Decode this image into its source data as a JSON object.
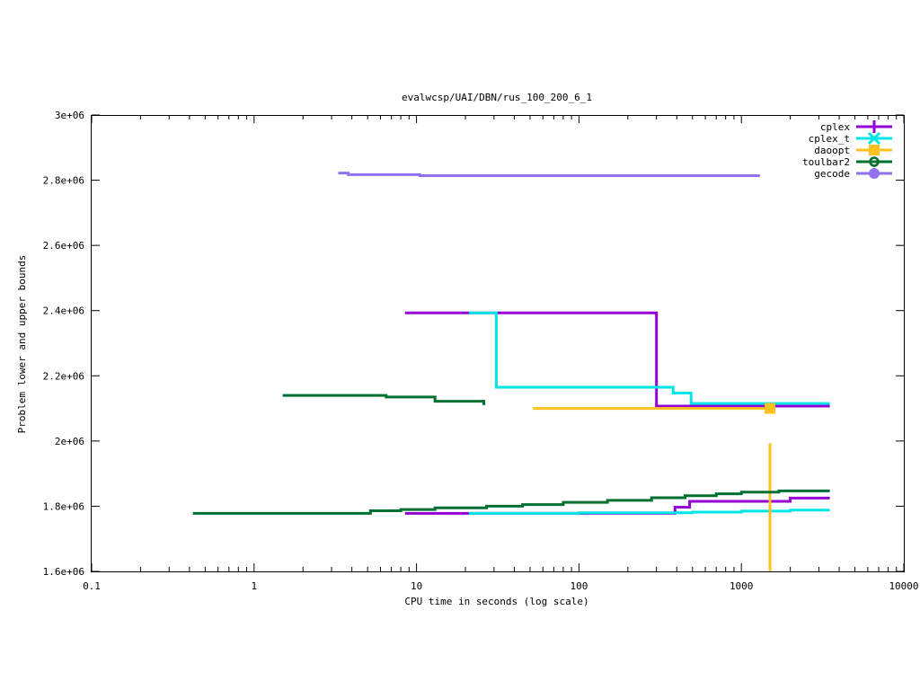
{
  "chart_data": {
    "type": "line",
    "title": "evalwcsp/UAI/DBN/rus_100_200_6_1",
    "xlabel": "CPU time in seconds (log scale)",
    "ylabel": "Problem lower and upper bounds",
    "xscale": "log",
    "xlim": [
      0.1,
      10000
    ],
    "ylim": [
      1600000,
      3000000
    ],
    "grid": false,
    "legend_position": "top-right",
    "x_ticks": [
      0.1,
      1,
      10,
      100,
      1000,
      10000
    ],
    "x_tick_labels": [
      "0.1",
      "1",
      "10",
      "100",
      "1000",
      "10000"
    ],
    "y_ticks": [
      1600000,
      1800000,
      2000000,
      2200000,
      2400000,
      2600000,
      2800000,
      3000000
    ],
    "y_tick_labels": [
      "1.6e+06",
      "1.8e+06",
      "2e+06",
      "2.2e+06",
      "2.4e+06",
      "2.6e+06",
      "2.8e+06",
      "3e+06"
    ],
    "series": [
      {
        "name": "cplex",
        "color": "#9400d3",
        "marker": "plus",
        "lines": [
          [
            [
              8.5,
              2393000
            ],
            [
              300,
              2393000
            ],
            [
              300,
              2107000
            ],
            [
              3500,
              2107000
            ]
          ],
          [
            [
              8.5,
              1778000
            ],
            [
              390,
              1778000
            ],
            [
              390,
              1797000
            ],
            [
              480,
              1797000
            ],
            [
              480,
              1815000
            ],
            [
              2000,
              1815000
            ],
            [
              2000,
              1825000
            ],
            [
              3500,
              1825000
            ]
          ]
        ],
        "points": []
      },
      {
        "name": "cplex_t",
        "color": "#00e5e5",
        "marker": "cross",
        "lines": [
          [
            [
              21,
              2393000
            ],
            [
              31,
              2393000
            ],
            [
              31,
              2165000
            ],
            [
              380,
              2165000
            ],
            [
              380,
              2147000
            ],
            [
              490,
              2147000
            ],
            [
              490,
              2115000
            ],
            [
              3500,
              2115000
            ]
          ],
          [
            [
              21,
              1778000
            ],
            [
              100,
              1778000
            ],
            [
              100,
              1780000
            ],
            [
              500,
              1780000
            ],
            [
              500,
              1782000
            ],
            [
              1000,
              1782000
            ],
            [
              1000,
              1785000
            ],
            [
              2000,
              1785000
            ],
            [
              2000,
              1788000
            ],
            [
              3500,
              1788000
            ]
          ]
        ],
        "points": []
      },
      {
        "name": "daoopt",
        "color": "#ffc020",
        "marker": "square",
        "lines": [
          [
            [
              52,
              2100000
            ],
            [
              1500,
              2100000
            ]
          ],
          [
            [
              1500,
              1993000
            ],
            [
              1500,
              1600000
            ]
          ]
        ],
        "points": [
          [
            1500,
            2100000
          ]
        ]
      },
      {
        "name": "toulbar2",
        "color": "#007030",
        "marker": "circle",
        "lines": [
          [
            [
              1.5,
              2140000
            ],
            [
              6.5,
              2140000
            ],
            [
              6.5,
              2135000
            ],
            [
              13,
              2135000
            ],
            [
              13,
              2122000
            ],
            [
              26,
              2122000
            ],
            [
              26,
              2110000
            ]
          ],
          [
            [
              0.42,
              1778000
            ],
            [
              5.2,
              1778000
            ],
            [
              5.2,
              1786000
            ],
            [
              8,
              1786000
            ],
            [
              8,
              1790000
            ],
            [
              13,
              1790000
            ],
            [
              13,
              1795000
            ],
            [
              27,
              1795000
            ],
            [
              27,
              1800000
            ],
            [
              45,
              1800000
            ],
            [
              45,
              1805000
            ],
            [
              80,
              1805000
            ],
            [
              80,
              1812000
            ],
            [
              150,
              1812000
            ],
            [
              150,
              1818000
            ],
            [
              280,
              1818000
            ],
            [
              280,
              1826000
            ],
            [
              450,
              1826000
            ],
            [
              450,
              1832000
            ],
            [
              700,
              1832000
            ],
            [
              700,
              1838000
            ],
            [
              1000,
              1838000
            ],
            [
              1000,
              1843000
            ],
            [
              1700,
              1843000
            ],
            [
              1700,
              1847000
            ],
            [
              3500,
              1847000
            ]
          ]
        ],
        "points": []
      },
      {
        "name": "gecode",
        "color": "#9370f0",
        "marker": "filled-circle",
        "lines": [
          [
            [
              3.3,
              2822000
            ],
            [
              3.8,
              2822000
            ],
            [
              3.8,
              2817000
            ],
            [
              10.5,
              2817000
            ],
            [
              10.5,
              2814000
            ],
            [
              1300,
              2814000
            ]
          ]
        ],
        "points": []
      }
    ]
  }
}
